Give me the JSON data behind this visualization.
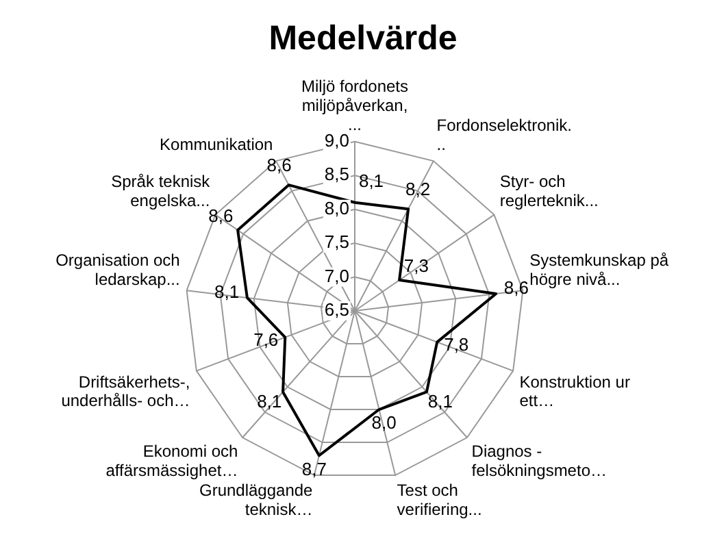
{
  "chart_data": {
    "type": "radar",
    "title": "Medelvärde",
    "categories": [
      "Miljö fordonets miljöpåverkan, ...",
      "Fordonselektronik. ..",
      "Styr- och reglerteknik...",
      "Systemkunskap på högre nivå...",
      "Konstruktion ur ett…",
      "Diagnos - felsökningsmeto…",
      "Test och verifiering...",
      "Grundläggande teknisk…",
      "Ekonomi och affärsmässighet…",
      "Driftsäkerhets-, underhålls- och…",
      "Organisation och ledarskap...",
      "Språk teknisk engelska...",
      "Kommunikation"
    ],
    "series": [
      {
        "color": "#000000",
        "values": [
          8.1,
          8.2,
          7.3,
          8.6,
          7.8,
          8.1,
          8.0,
          8.7,
          8.1,
          7.6,
          8.1,
          8.6,
          8.6
        ],
        "value_labels": [
          "8,1",
          "8,2",
          "7,3",
          "8,6",
          "7,8",
          "8,1",
          "8,0",
          "8,7",
          "8,1",
          "7,6",
          "8,1",
          "8,6",
          "8,6"
        ]
      }
    ],
    "ylim": [
      6.5,
      9.0
    ],
    "yticks": [
      {
        "value": 6.5,
        "label": "6,5"
      },
      {
        "value": 7.0,
        "label": "7,0"
      },
      {
        "value": 7.5,
        "label": "7,5"
      },
      {
        "value": 8.0,
        "label": "8,0"
      },
      {
        "value": 8.5,
        "label": "8,5"
      },
      {
        "value": 9.0,
        "label": "9,0"
      }
    ],
    "grid": true,
    "legend": false,
    "marker": "none",
    "line_style": "solid"
  }
}
